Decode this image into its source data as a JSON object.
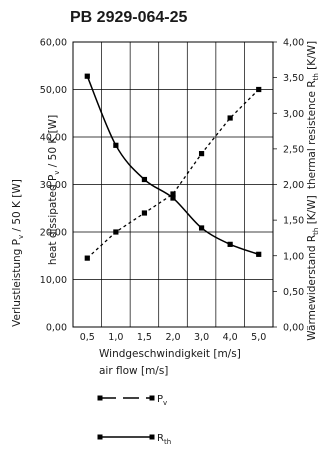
{
  "title": "PB 2929-064-25",
  "chart_data": {
    "type": "line",
    "title": "PB 2929-064-25",
    "categories": [
      "0,5",
      "1,0",
      "1,5",
      "2,0",
      "3,0",
      "4,0",
      "5,0"
    ],
    "xlabel_de": "Windgeschwindigkeit [m/s]",
    "xlabel_en": "air flow [m/s]",
    "y_left": {
      "label_en_main": "heat dissipated P",
      "label_en_sub": "v",
      "label_en_tail": " / 50 K [W]",
      "label_de_main": "Verlustleistung P",
      "label_de_sub": "v",
      "label_de_tail": " / 50 K [W]",
      "ticks": [
        "0,00",
        "10,00",
        "20,00",
        "30,00",
        "40,00",
        "50,00",
        "60,00"
      ],
      "lim": [
        0,
        60
      ]
    },
    "y_right": {
      "label_en_main": "thermal resistence R",
      "label_en_sub": "th",
      "label_en_tail": " [K/W]",
      "label_de_main": "Wärmewiderstand R",
      "label_de_sub": "th",
      "label_de_tail": " [K/W]",
      "ticks": [
        "0,00",
        "0,50",
        "1,00",
        "1,50",
        "2,00",
        "2,50",
        "3,00",
        "3,50",
        "4,00"
      ],
      "lim": [
        0,
        4
      ]
    },
    "grid": true,
    "series": [
      {
        "name_main": "P",
        "name_sub": "v",
        "axis": "left",
        "style": "dashed",
        "values": [
          14.5,
          20.0,
          24.0,
          28.0,
          36.5,
          44.0,
          50.0
        ]
      },
      {
        "name_main": "R",
        "name_sub": "th",
        "axis": "right",
        "style": "solid",
        "values": [
          3.52,
          2.55,
          2.07,
          1.81,
          1.39,
          1.16,
          1.02
        ]
      }
    ]
  }
}
